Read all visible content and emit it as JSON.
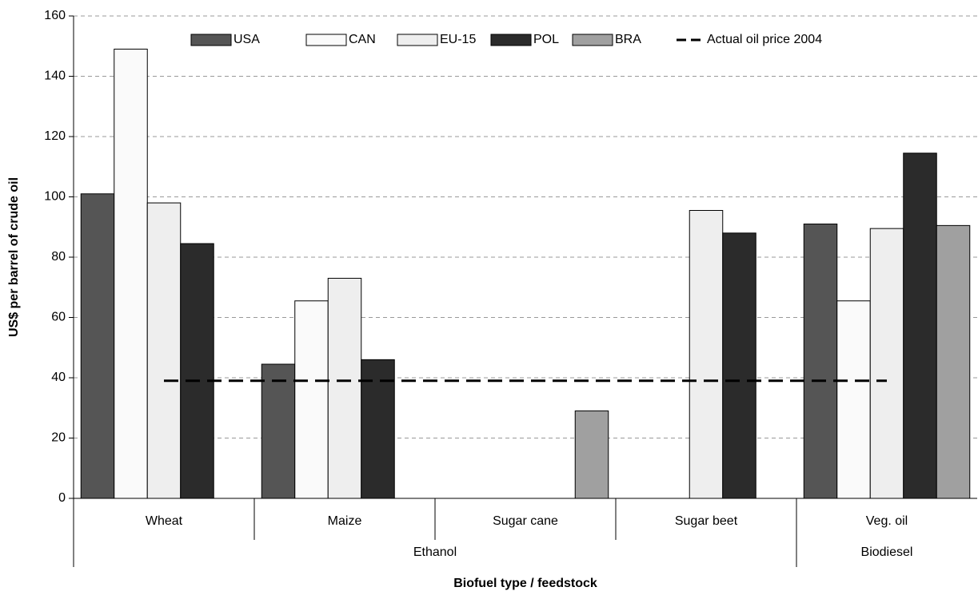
{
  "chart_data": {
    "type": "bar",
    "y_label": "US$ per barrel of crude oil",
    "x_label": "Biofuel type / feedstock",
    "categories": [
      "Wheat",
      "Maize",
      "Sugar cane",
      "Sugar beet",
      "Veg. oil"
    ],
    "category_groups": [
      "Ethanol",
      "Ethanol",
      "Ethanol",
      "Ethanol",
      "Biodiesel"
    ],
    "series": [
      {
        "name": "USA",
        "color": "#555555",
        "values": [
          101,
          44.5,
          null,
          null,
          91
        ]
      },
      {
        "name": "CAN",
        "color": "#fafafa",
        "values": [
          149,
          65.5,
          null,
          null,
          65.5
        ]
      },
      {
        "name": "EU-15",
        "color": "#eeeeee",
        "values": [
          98,
          73,
          null,
          95.5,
          89.5
        ]
      },
      {
        "name": "POL",
        "color": "#2b2b2b",
        "values": [
          84.5,
          46,
          null,
          88,
          114.5
        ]
      },
      {
        "name": "BRA",
        "color": "#a0a0a0",
        "values": [
          null,
          null,
          29,
          null,
          90.5
        ]
      },
      {
        "name": "Actual oil price 2004",
        "type": "line",
        "color": "#000000",
        "values": [
          39,
          39,
          39,
          39,
          39
        ]
      }
    ],
    "ylim": [
      0,
      160
    ],
    "yticks": [
      0,
      20,
      40,
      60,
      80,
      100,
      120,
      140,
      160
    ],
    "grid": true,
    "legend": "top"
  }
}
